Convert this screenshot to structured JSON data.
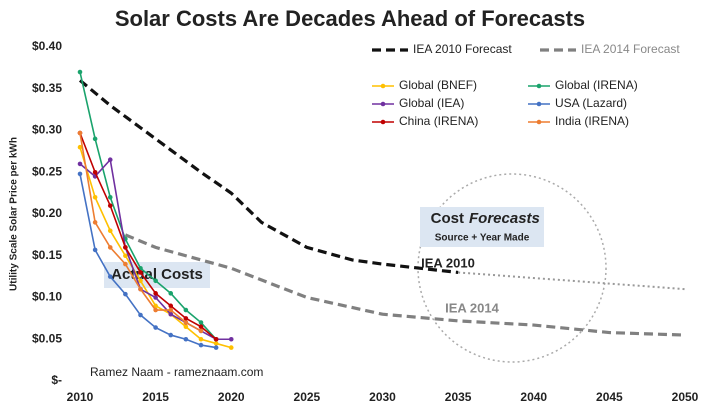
{
  "chart_data": {
    "type": "line",
    "title": "Solar Costs Are Decades Ahead of Forecasts",
    "y_label": "Utility Scale Solar Price per kWh",
    "xlim": [
      2010,
      2050
    ],
    "xticks": [
      2010,
      2015,
      2020,
      2025,
      2030,
      2035,
      2040,
      2045,
      2050
    ],
    "ylim": [
      0,
      0.4
    ],
    "yticks": [
      {
        "value": 0,
        "label": "$-"
      },
      {
        "value": 0.05,
        "label": "$0.05"
      },
      {
        "value": 0.1,
        "label": "$0.10"
      },
      {
        "value": 0.15,
        "label": "$0.15"
      },
      {
        "value": 0.2,
        "label": "$0.20"
      },
      {
        "value": 0.25,
        "label": "$0.25"
      },
      {
        "value": 0.3,
        "label": "$0.30"
      },
      {
        "value": 0.35,
        "label": "$0.35"
      },
      {
        "value": 0.4,
        "label": "$0.40"
      }
    ],
    "series": [
      {
        "name": "IEA 2010 Forecast",
        "color": "#111111",
        "style": "dashed",
        "x": [
          2010,
          2012,
          2015,
          2018,
          2020,
          2022,
          2025,
          2028,
          2030,
          2035
        ],
        "values": [
          0.36,
          0.33,
          0.29,
          0.25,
          0.225,
          0.19,
          0.16,
          0.145,
          0.14,
          0.13
        ]
      },
      {
        "name": "IEA 2014 Forecast",
        "color": "#808080",
        "style": "dashed",
        "x": [
          2013,
          2015,
          2020,
          2025,
          2030,
          2035,
          2040,
          2045,
          2050
        ],
        "values": [
          0.175,
          0.16,
          0.135,
          0.1,
          0.08,
          0.072,
          0.067,
          0.058,
          0.055
        ]
      },
      {
        "name": "Global (BNEF)",
        "color": "#ffc000",
        "style": "solid",
        "x": [
          2010,
          2011,
          2012,
          2013,
          2014,
          2015,
          2016,
          2017,
          2018,
          2019,
          2020
        ],
        "values": [
          0.28,
          0.22,
          0.18,
          0.15,
          0.12,
          0.09,
          0.08,
          0.065,
          0.05,
          0.045,
          0.04
        ]
      },
      {
        "name": "Global (IRENA)",
        "color": "#1aa36c",
        "style": "solid",
        "x": [
          2010,
          2011,
          2012,
          2013,
          2014,
          2015,
          2016,
          2017,
          2018,
          2019
        ],
        "values": [
          0.37,
          0.29,
          0.22,
          0.17,
          0.135,
          0.12,
          0.105,
          0.085,
          0.07,
          0.05
        ]
      },
      {
        "name": "Global (IEA)",
        "color": "#7030a0",
        "style": "solid",
        "x": [
          2010,
          2011,
          2012,
          2013,
          2014,
          2015,
          2016,
          2017,
          2018,
          2019,
          2020
        ],
        "values": [
          0.26,
          0.245,
          0.265,
          0.16,
          0.11,
          0.1,
          0.08,
          0.07,
          0.06,
          0.05,
          0.05
        ]
      },
      {
        "name": "USA (Lazard)",
        "color": "#4472c4",
        "style": "solid",
        "x": [
          2010,
          2011,
          2012,
          2013,
          2014,
          2015,
          2016,
          2017,
          2018,
          2019
        ],
        "values": [
          0.248,
          0.157,
          0.125,
          0.104,
          0.079,
          0.064,
          0.055,
          0.05,
          0.043,
          0.04
        ]
      },
      {
        "name": "China (IRENA)",
        "color": "#c00000",
        "style": "solid",
        "x": [
          2010,
          2011,
          2012,
          2013,
          2014,
          2015,
          2016,
          2017,
          2018,
          2019
        ],
        "values": [
          0.297,
          0.25,
          0.21,
          0.16,
          0.13,
          0.105,
          0.09,
          0.075,
          0.065,
          0.05
        ]
      },
      {
        "name": "India (IRENA)",
        "color": "#ed7d31",
        "style": "solid",
        "x": [
          2010,
          2011,
          2012,
          2013,
          2014,
          2015,
          2016,
          2017,
          2018
        ],
        "values": [
          0.297,
          0.19,
          0.16,
          0.14,
          0.11,
          0.085,
          0.085,
          0.07,
          0.06
        ]
      }
    ],
    "projections": [
      {
        "color": "#999999",
        "style": "dotted",
        "x": [
          2035,
          2050
        ],
        "values": [
          0.13,
          0.11
        ]
      }
    ],
    "annotations": {
      "actual": "Actual Costs",
      "forecast_1": "Cost",
      "forecast_2": "Forecasts",
      "forecast_sub": "Source + Year Made",
      "iea2010": "IEA 2010",
      "iea2014": "IEA 2014",
      "credit": "Ramez Naam - rameznaam.com"
    }
  }
}
